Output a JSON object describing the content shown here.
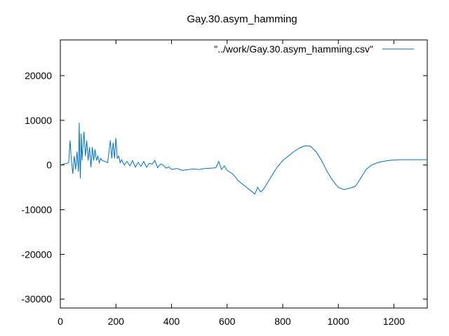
{
  "chart_data": {
    "type": "line",
    "title": "Gay.30.asym_hamming",
    "xlabel": "",
    "ylabel": "",
    "xlim": [
      0,
      1320
    ],
    "ylim": [
      -32000,
      28000
    ],
    "xticks": [
      0,
      200,
      400,
      600,
      800,
      1000,
      1200
    ],
    "yticks": [
      -30000,
      -20000,
      -10000,
      0,
      10000,
      20000
    ],
    "legend_position": "top-right",
    "grid": false,
    "series": [
      {
        "name": "\"../work/Gay.30.asym_hamming.csv\"",
        "color": "#0072bd",
        "x": [
          0,
          10,
          20,
          30,
          35,
          40,
          45,
          50,
          55,
          60,
          65,
          68,
          70,
          72,
          75,
          78,
          80,
          85,
          90,
          95,
          100,
          105,
          110,
          115,
          120,
          125,
          130,
          135,
          140,
          145,
          150,
          160,
          170,
          180,
          185,
          190,
          195,
          200,
          205,
          210,
          215,
          220,
          230,
          240,
          250,
          260,
          270,
          280,
          290,
          300,
          310,
          320,
          330,
          340,
          350,
          360,
          370,
          380,
          390,
          400,
          420,
          440,
          460,
          480,
          500,
          520,
          540,
          560,
          570,
          580,
          590,
          600,
          620,
          640,
          660,
          680,
          700,
          710,
          720,
          730,
          740,
          760,
          780,
          800,
          820,
          840,
          860,
          880,
          900,
          920,
          940,
          960,
          980,
          1000,
          1020,
          1040,
          1060,
          1070,
          1080,
          1090,
          1100,
          1120,
          1140,
          1160,
          1180,
          1200,
          1220,
          1240,
          1260,
          1280,
          1300,
          1320
        ],
        "values": [
          0,
          200,
          300,
          500,
          5500,
          1000,
          -2000,
          2000,
          -1000,
          3000,
          -1500,
          9500,
          2000,
          -3000,
          7000,
          1000,
          3000,
          7500,
          2000,
          5500,
          1000,
          4000,
          -500,
          4000,
          1000,
          3500,
          1000,
          2000,
          500,
          1500,
          1000,
          800,
          500,
          5500,
          1500,
          5000,
          1500,
          6000,
          1500,
          2000,
          500,
          1200,
          0,
          800,
          -200,
          1000,
          -500,
          600,
          -300,
          800,
          -500,
          400,
          200,
          1000,
          -600,
          200,
          0,
          -700,
          -400,
          -1000,
          -800,
          -1200,
          -1000,
          -900,
          -1000,
          -800,
          -700,
          -600,
          800,
          -1000,
          -200,
          -1200,
          -2000,
          -3500,
          -4500,
          -5500,
          -6500,
          -5000,
          -6000,
          -5500,
          -4500,
          -2500,
          -500,
          1000,
          2000,
          3000,
          3800,
          4300,
          4200,
          3000,
          1000,
          -1500,
          -3500,
          -5000,
          -5500,
          -5200,
          -4800,
          -4000,
          -3000,
          -2000,
          -1000,
          0,
          500,
          800,
          1000,
          1100,
          1200,
          1200,
          1200,
          1200,
          1200,
          1200
        ]
      }
    ]
  }
}
